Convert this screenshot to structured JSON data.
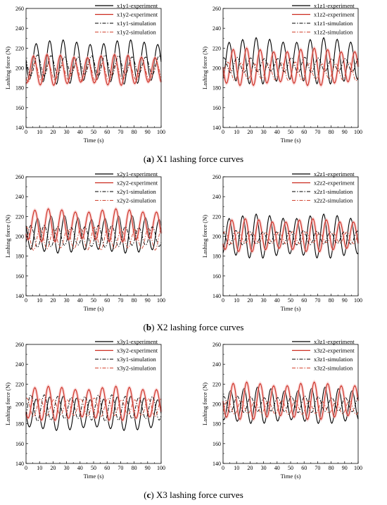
{
  "captions": [
    {
      "letter": "a",
      "text": " X1 lashing force curves"
    },
    {
      "letter": "b",
      "text": " X2 lashing force curves"
    },
    {
      "letter": "c",
      "text": " X3 lashing force curves"
    }
  ],
  "colors": {
    "experiment_black": "#000000",
    "experiment_red": "#cc2a1e",
    "simulation_black": "#000000",
    "simulation_red": "#d2432f"
  },
  "chart_data": [
    {
      "type": "line",
      "xlabel": "Time (s)",
      "ylabel": "Lashing force (N)",
      "xlim": [
        0,
        100
      ],
      "ylim": [
        140,
        260
      ],
      "xticks": [
        0,
        10,
        20,
        30,
        40,
        50,
        60,
        70,
        80,
        90,
        100
      ],
      "yticks": [
        140,
        160,
        180,
        200,
        220,
        240,
        260
      ],
      "legend_position": "top-right",
      "series": [
        {
          "name": "x1y1-experiment",
          "style": "solid",
          "color": "black",
          "period_s": 10,
          "phase_s": 5,
          "min": 186,
          "max": 226
        },
        {
          "name": "x1y2-experiment",
          "style": "solid",
          "color": "red",
          "period_s": 10,
          "phase_s": 3,
          "min": 184,
          "max": 212
        },
        {
          "name": "x1y1-simulation",
          "style": "dashdot",
          "color": "black",
          "period_s": 10,
          "phase_s": 6,
          "min": 193,
          "max": 212
        },
        {
          "name": "x1y2-simulation",
          "style": "dashdot",
          "color": "red",
          "period_s": 10,
          "phase_s": 4,
          "min": 187,
          "max": 204
        }
      ]
    },
    {
      "type": "line",
      "xlabel": "Time (s)",
      "ylabel": "Lashing force (N)",
      "xlim": [
        0,
        100
      ],
      "ylim": [
        140,
        260
      ],
      "xticks": [
        0,
        10,
        20,
        30,
        40,
        50,
        60,
        70,
        80,
        90,
        100
      ],
      "yticks": [
        140,
        160,
        180,
        200,
        220,
        240,
        260
      ],
      "legend_position": "top-right",
      "series": [
        {
          "name": "x1z1-experiment",
          "style": "solid",
          "color": "black",
          "period_s": 10,
          "phase_s": 2,
          "min": 186,
          "max": 228
        },
        {
          "name": "x1z2-experiment",
          "style": "solid",
          "color": "red",
          "period_s": 10,
          "phase_s": 5,
          "min": 184,
          "max": 218
        },
        {
          "name": "x1z1-simulation",
          "style": "dashdot",
          "color": "black",
          "period_s": 10,
          "phase_s": 8,
          "min": 196,
          "max": 210
        },
        {
          "name": "x1z2-simulation",
          "style": "dashdot",
          "color": "red",
          "period_s": 10,
          "phase_s": 1,
          "min": 188,
          "max": 205
        }
      ]
    },
    {
      "type": "line",
      "xlabel": "Time (s)",
      "ylabel": "Lashing force (N)",
      "xlim": [
        0,
        100
      ],
      "ylim": [
        140,
        260
      ],
      "xticks": [
        0,
        10,
        20,
        30,
        40,
        50,
        60,
        70,
        80,
        90,
        100
      ],
      "yticks": [
        140,
        160,
        180,
        200,
        220,
        240,
        260
      ],
      "legend_position": "top-right",
      "series": [
        {
          "name": "x2y1-experiment",
          "style": "solid",
          "color": "black",
          "period_s": 10,
          "phase_s": 6,
          "min": 185,
          "max": 219
        },
        {
          "name": "x2y2-experiment",
          "style": "solid",
          "color": "red",
          "period_s": 10,
          "phase_s": 4,
          "min": 196,
          "max": 226
        },
        {
          "name": "x2y1-simulation",
          "style": "dashdot",
          "color": "black",
          "period_s": 10,
          "phase_s": 1,
          "min": 190,
          "max": 210
        },
        {
          "name": "x2y2-simulation",
          "style": "dashdot",
          "color": "red",
          "period_s": 10,
          "phase_s": 8,
          "min": 187,
          "max": 208
        }
      ]
    },
    {
      "type": "line",
      "xlabel": "Time (s)",
      "ylabel": "Lashing force (N)",
      "xlim": [
        0,
        100
      ],
      "ylim": [
        140,
        260
      ],
      "xticks": [
        0,
        10,
        20,
        30,
        40,
        50,
        60,
        70,
        80,
        90,
        100
      ],
      "yticks": [
        140,
        160,
        180,
        200,
        220,
        240,
        260
      ],
      "legend_position": "top-right",
      "series": [
        {
          "name": "x2z1-experiment",
          "style": "solid",
          "color": "black",
          "period_s": 10,
          "phase_s": 2,
          "min": 180,
          "max": 220
        },
        {
          "name": "x2z2-experiment",
          "style": "solid",
          "color": "red",
          "period_s": 10,
          "phase_s": 4,
          "min": 186,
          "max": 216
        },
        {
          "name": "x2z1-simulation",
          "style": "dashdot",
          "color": "black",
          "period_s": 10,
          "phase_s": 7,
          "min": 192,
          "max": 205
        },
        {
          "name": "x2z2-simulation",
          "style": "dashdot",
          "color": "red",
          "period_s": 10,
          "phase_s": 9,
          "min": 193,
          "max": 204
        }
      ]
    },
    {
      "type": "line",
      "xlabel": "Time (s)",
      "ylabel": "Lashing force (N)",
      "xlim": [
        0,
        100
      ],
      "ylim": [
        140,
        260
      ],
      "xticks": [
        0,
        10,
        20,
        30,
        40,
        50,
        60,
        70,
        80,
        90,
        100
      ],
      "yticks": [
        140,
        160,
        180,
        200,
        220,
        240,
        260
      ],
      "legend_position": "top-right",
      "series": [
        {
          "name": "x3y1-experiment",
          "style": "solid",
          "color": "black",
          "period_s": 10,
          "phase_s": 5,
          "min": 175,
          "max": 206
        },
        {
          "name": "x3y2-experiment",
          "style": "solid",
          "color": "red",
          "period_s": 10,
          "phase_s": 4,
          "min": 185,
          "max": 216
        },
        {
          "name": "x3y1-simulation",
          "style": "dashdot",
          "color": "black",
          "period_s": 10,
          "phase_s": 1,
          "min": 184,
          "max": 208
        },
        {
          "name": "x3y2-simulation",
          "style": "dashdot",
          "color": "red",
          "period_s": 10,
          "phase_s": 8,
          "min": 188,
          "max": 205
        }
      ]
    },
    {
      "type": "line",
      "xlabel": "Time (s)",
      "ylabel": "Lashing force (N)",
      "xlim": [
        0,
        100
      ],
      "ylim": [
        140,
        260
      ],
      "xticks": [
        0,
        10,
        20,
        30,
        40,
        50,
        60,
        70,
        80,
        90,
        100
      ],
      "yticks": [
        140,
        160,
        180,
        200,
        220,
        240,
        260
      ],
      "legend_position": "top-right",
      "series": [
        {
          "name": "x3z1-experiment",
          "style": "solid",
          "color": "black",
          "period_s": 10,
          "phase_s": 3,
          "min": 182,
          "max": 215
        },
        {
          "name": "x3z2-experiment",
          "style": "solid",
          "color": "red",
          "period_s": 10,
          "phase_s": 5,
          "min": 186,
          "max": 220
        },
        {
          "name": "x3z1-simulation",
          "style": "dashdot",
          "color": "black",
          "period_s": 10,
          "phase_s": 8,
          "min": 192,
          "max": 207
        },
        {
          "name": "x3z2-simulation",
          "style": "dashdot",
          "color": "red",
          "period_s": 10,
          "phase_s": 1,
          "min": 190,
          "max": 203
        }
      ]
    }
  ]
}
